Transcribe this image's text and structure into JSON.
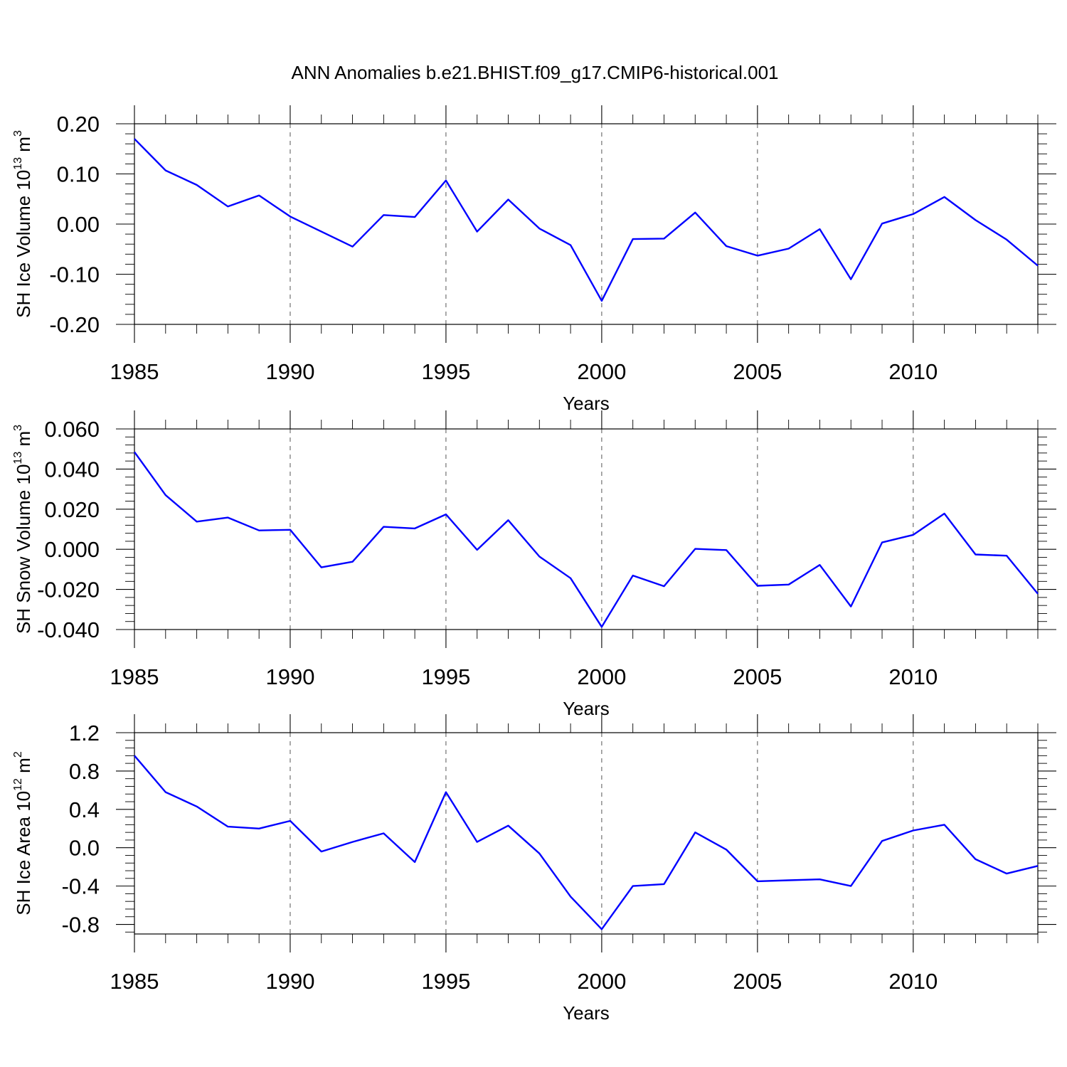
{
  "figure": {
    "title": "ANN Anomalies b.e21.BHIST.f09_g17.CMIP6-historical.001"
  },
  "chart_data": [
    {
      "type": "line",
      "ylabel": "SH Ice Volume 10",
      "ylabel_exp": "13",
      "ylabel_unit": " m",
      "ylabel_unit_exp": "3",
      "xlabel": "Years",
      "xlim": [
        1985,
        2014
      ],
      "ylim": [
        -0.2,
        0.2
      ],
      "yticks": [
        -0.2,
        -0.1,
        0.0,
        0.1,
        0.2
      ],
      "ytick_labels": [
        "-0.20",
        "-0.10",
        "0.00",
        "0.10",
        "0.20"
      ],
      "xticks": [
        1985,
        1990,
        1995,
        2000,
        2005,
        2010
      ],
      "xtick_labels": [
        "1985",
        "1990",
        "1995",
        "2000",
        "2005",
        "2010"
      ],
      "grid": "vertical dashed at labeled years",
      "line_color": "#0000ff",
      "series": [
        {
          "x": [
            1985,
            1986,
            1987,
            1988,
            1989,
            1990,
            1991,
            1992,
            1993,
            1994,
            1995,
            1996,
            1997,
            1998,
            1999,
            2000,
            2001,
            2002,
            2003,
            2004,
            2005,
            2006,
            2007,
            2008,
            2009,
            2010,
            2011,
            2012,
            2013,
            2014
          ],
          "values": [
            0.17,
            0.107,
            0.078,
            0.035,
            0.057,
            0.015,
            -0.015,
            -0.045,
            0.018,
            0.014,
            0.087,
            -0.015,
            0.049,
            -0.009,
            -0.042,
            -0.153,
            -0.03,
            -0.029,
            0.023,
            -0.044,
            -0.063,
            -0.049,
            -0.01,
            -0.11,
            0.001,
            0.02,
            0.054,
            0.008,
            -0.031,
            -0.083
          ]
        }
      ]
    },
    {
      "type": "line",
      "ylabel": "SH Snow Volume 10",
      "ylabel_exp": "13",
      "ylabel_unit": " m",
      "ylabel_unit_exp": "3",
      "xlabel": "Years",
      "xlim": [
        1985,
        2014
      ],
      "ylim": [
        -0.04,
        0.06
      ],
      "yticks": [
        -0.04,
        -0.02,
        0.0,
        0.02,
        0.04,
        0.06
      ],
      "ytick_labels": [
        "-0.040",
        "-0.020",
        "0.000",
        "0.020",
        "0.040",
        "0.060"
      ],
      "xticks": [
        1985,
        1990,
        1995,
        2000,
        2005,
        2010
      ],
      "xtick_labels": [
        "1985",
        "1990",
        "1995",
        "2000",
        "2005",
        "2010"
      ],
      "grid": "vertical dashed at labeled years",
      "line_color": "#0000ff",
      "series": [
        {
          "x": [
            1985,
            1986,
            1987,
            1988,
            1989,
            1990,
            1991,
            1992,
            1993,
            1994,
            1995,
            1996,
            1997,
            1998,
            1999,
            2000,
            2001,
            2002,
            2003,
            2004,
            2005,
            2006,
            2007,
            2008,
            2009,
            2010,
            2011,
            2012,
            2013,
            2014
          ],
          "values": [
            0.0485,
            0.027,
            0.0138,
            0.0158,
            0.0094,
            0.0097,
            -0.009,
            -0.0062,
            0.0112,
            0.0104,
            0.0174,
            -0.0003,
            0.0145,
            -0.0036,
            -0.0144,
            -0.0387,
            -0.0131,
            -0.0184,
            0.0002,
            -0.0004,
            -0.0182,
            -0.0176,
            -0.0078,
            -0.0285,
            0.0034,
            0.0072,
            0.0178,
            -0.0026,
            -0.0032,
            -0.0222
          ]
        }
      ]
    },
    {
      "type": "line",
      "ylabel": "SH Ice Area 10",
      "ylabel_exp": "12",
      "ylabel_unit": " m",
      "ylabel_unit_exp": "2",
      "xlabel": "Years",
      "xlim": [
        1985,
        2014
      ],
      "ylim": [
        -0.9,
        1.2
      ],
      "yticks": [
        -0.8,
        -0.4,
        0.0,
        0.4,
        0.8,
        1.2
      ],
      "ytick_labels": [
        "-0.8",
        "-0.4",
        "0.0",
        "0.4",
        "0.8",
        "1.2"
      ],
      "xticks": [
        1985,
        1990,
        1995,
        2000,
        2005,
        2010
      ],
      "xtick_labels": [
        "1985",
        "1990",
        "1995",
        "2000",
        "2005",
        "2010"
      ],
      "grid": "vertical dashed at labeled years",
      "line_color": "#0000ff",
      "series": [
        {
          "x": [
            1985,
            1986,
            1987,
            1988,
            1989,
            1990,
            1991,
            1992,
            1993,
            1994,
            1995,
            1996,
            1997,
            1998,
            1999,
            2000,
            2001,
            2002,
            2003,
            2004,
            2005,
            2006,
            2007,
            2008,
            2009,
            2010,
            2011,
            2012,
            2013,
            2014
          ],
          "values": [
            0.96,
            0.58,
            0.43,
            0.22,
            0.2,
            0.28,
            -0.04,
            0.06,
            0.15,
            -0.15,
            0.58,
            0.06,
            0.23,
            -0.06,
            -0.51,
            -0.85,
            -0.4,
            -0.38,
            0.16,
            -0.02,
            -0.35,
            -0.34,
            -0.33,
            -0.4,
            0.07,
            0.18,
            0.24,
            -0.12,
            -0.27,
            -0.19
          ]
        }
      ]
    }
  ]
}
